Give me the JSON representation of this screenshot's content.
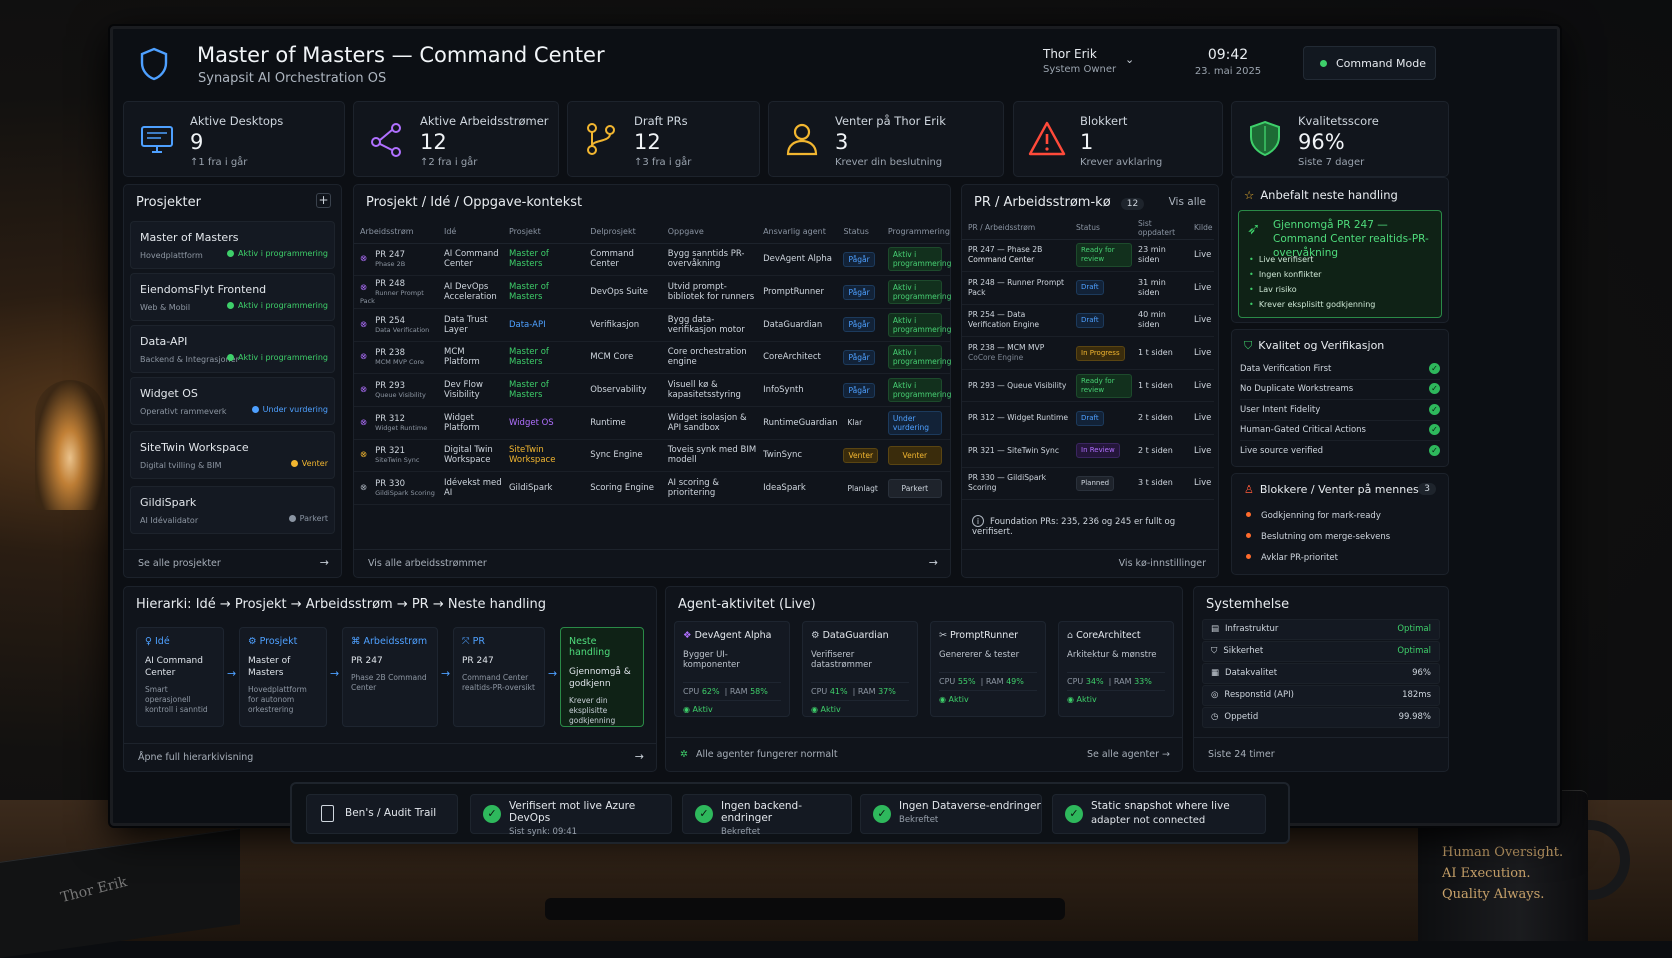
{
  "header": {
    "title": "Master of Masters — Command Center",
    "subtitle": "Synapsit AI Orchestration OS",
    "user": "Thor Erik",
    "role": "System Owner",
    "time": "09:42",
    "date": "23. mai 2025",
    "mode": "Command Mode"
  },
  "kpis": [
    {
      "label": "Aktive Desktops",
      "value": "9",
      "sub": "↑1 fra i går",
      "icon": "monitor-icon"
    },
    {
      "label": "Aktive Arbeidsstrømer",
      "value": "12",
      "sub": "↑2 fra i går",
      "icon": "workflow-icon"
    },
    {
      "label": "Draft PRs",
      "value": "12",
      "sub": "↑3 fra i går",
      "icon": "git-branch-icon"
    },
    {
      "label": "Venter på Thor Erik",
      "value": "3",
      "sub": "Krever din beslutning",
      "icon": "user-icon"
    },
    {
      "label": "Blokkert",
      "value": "1",
      "sub": "Krever avklaring",
      "icon": "warning-icon"
    },
    {
      "label": "Kvalitetsscore",
      "value": "96%",
      "sub": "Siste 7 dager",
      "icon": "shield-check-icon"
    }
  ],
  "projects": {
    "title": "Prosjekter",
    "footer": "Se alle prosjekter",
    "items": [
      {
        "name": "Master of Masters",
        "sub": "Hovedplattform",
        "status": "Aktiv i programmering",
        "color": "#3ecf6a"
      },
      {
        "name": "EiendomsFlyt Frontend",
        "sub": "Web & Mobil",
        "status": "Aktiv i programmering",
        "color": "#3ecf6a"
      },
      {
        "name": "Data-API",
        "sub": "Backend & Integrasjoner",
        "status": "Aktiv i programmering",
        "color": "#3ecf6a"
      },
      {
        "name": "Widget OS",
        "sub": "Operativt rammeverk",
        "status": "Under vurdering",
        "color": "#4ea0ff"
      },
      {
        "name": "SiteTwin Workspace",
        "sub": "Digital tvilling & BIM",
        "status": "Venter",
        "color": "#f2b630"
      },
      {
        "name": "GildiSpark",
        "sub": "AI Idévalidator",
        "status": "Parkert",
        "color": "#8a94a2"
      }
    ]
  },
  "workstreams": {
    "title": "Prosjekt / Idé / Oppgave-kontekst",
    "footer": "Vis alle arbeidsstrømmer",
    "columns": [
      "Arbeidsstrøm",
      "Idé",
      "Prosjekt",
      "Delprosjekt",
      "Oppgave",
      "Ansvarlig agent",
      "Status",
      "Programmering"
    ],
    "rows": [
      {
        "pr": "PR 247",
        "prsub": "Phase 2B",
        "idea": "AI Command Center",
        "project": "Master of Masters",
        "pc": "g",
        "sub": "Command Center",
        "task": "Bygg sanntids PR-overvåkning",
        "agent": "DevAgent Alpha",
        "status": "Pågår",
        "sc": "b",
        "prog": "Aktiv i programmering",
        "pg": "g"
      },
      {
        "pr": "PR 248",
        "prsub": "Runner Prompt Pack",
        "idea": "AI DevOps Acceleration",
        "project": "Master of Masters",
        "pc": "g",
        "sub": "DevOps Suite",
        "task": "Utvid prompt-bibliotek for runners",
        "agent": "PromptRunner",
        "status": "Pågår",
        "sc": "b",
        "prog": "Aktiv i programmering",
        "pg": "g"
      },
      {
        "pr": "PR 254",
        "prsub": "Data Verification",
        "idea": "Data Trust Layer",
        "project": "Data-API",
        "pc": "b",
        "sub": "Verifikasjon",
        "task": "Bygg data-verifikasjon motor",
        "agent": "DataGuardian",
        "status": "Pågår",
        "sc": "b",
        "prog": "Aktiv i programmering",
        "pg": "g"
      },
      {
        "pr": "PR 238",
        "prsub": "MCM MVP Core",
        "idea": "MCM Platform",
        "project": "Master of Masters",
        "pc": "g",
        "sub": "MCM Core",
        "task": "Core orchestration engine",
        "agent": "CoreArchitect",
        "status": "Pågår",
        "sc": "b",
        "prog": "Aktiv i programmering",
        "pg": "g"
      },
      {
        "pr": "PR 293",
        "prsub": "Queue Visibility",
        "idea": "Dev Flow Visibility",
        "project": "Master of Masters",
        "pc": "g",
        "sub": "Observability",
        "task": "Visuell kø & kapasitetsstyring",
        "agent": "InfoSynth",
        "status": "Pågår",
        "sc": "b",
        "prog": "Aktiv i programmering",
        "pg": "g"
      },
      {
        "pr": "PR 312",
        "prsub": "Widget Runtime",
        "idea": "Widget Platform",
        "project": "Widget OS",
        "pc": "p",
        "sub": "Runtime",
        "task": "Widget isolasjon & API sandbox",
        "agent": "RuntimeGuardian",
        "status": "Klar",
        "sc": "n",
        "prog": "Under vurdering",
        "pg": "b"
      },
      {
        "pr": "PR 321",
        "prsub": "SiteTwin Sync",
        "idea": "Digital Twin Workspace",
        "project": "SiteTwin Workspace",
        "pc": "y",
        "sub": "Sync Engine",
        "task": "Toveis synk med BIM modell",
        "agent": "TwinSync",
        "status": "Venter",
        "sc": "y",
        "prog": "Venter",
        "pg": "y"
      },
      {
        "pr": "PR 330",
        "prsub": "GildiSpark Scoring",
        "idea": "Idévekst med AI",
        "project": "GildiSpark",
        "pc": "n",
        "sub": "Scoring Engine",
        "task": "AI scoring & prioritering",
        "agent": "IdeaSpark",
        "status": "Planlagt",
        "sc": "t",
        "prog": "Parkert",
        "pg": "n"
      }
    ]
  },
  "queue": {
    "title": "PR / Arbeidsstrøm-kø",
    "count": "12",
    "viewall": "Vis alle",
    "footer": "Vis kø-innstillinger",
    "note": "Foundation PRs: 235, 236 og 245 er fullt og verifisert.",
    "columns": [
      "PR / Arbeidsstrøm",
      "Status",
      "Sist oppdatert",
      "Kilde"
    ],
    "rows": [
      {
        "name": "PR 247 — Phase 2B",
        "sub": "Command Center",
        "status": "Ready for review",
        "sc": "g",
        "time": "23 min siden",
        "src": "Live"
      },
      {
        "name": "PR 248 — Runner Prompt Pack",
        "sub": "",
        "status": "Draft",
        "sc": "b",
        "time": "31 min siden",
        "src": "Live"
      },
      {
        "name": "PR 254 — Data Verification Engine",
        "sub": "",
        "status": "Draft",
        "sc": "b",
        "time": "40 min siden",
        "src": "Live"
      },
      {
        "name": "PR 238 — MCM MVP",
        "sub": "CoCore Engine",
        "status": "In Progress",
        "sc": "y",
        "time": "1 t siden",
        "src": "Live"
      },
      {
        "name": "PR 293 — Queue Visibility",
        "sub": "",
        "status": "Ready for review",
        "sc": "g",
        "time": "1 t siden",
        "src": "Live"
      },
      {
        "name": "PR 312 — Widget Runtime",
        "sub": "",
        "status": "Draft",
        "sc": "b",
        "time": "2 t siden",
        "src": "Live"
      },
      {
        "name": "PR 321 — SiteTwin Sync",
        "sub": "",
        "status": "In Review",
        "sc": "p",
        "time": "2 t siden",
        "src": "Live"
      },
      {
        "name": "PR 330 — GildiSpark Scoring",
        "sub": "",
        "status": "Planned",
        "sc": "n",
        "time": "3 t siden",
        "src": "Live"
      }
    ]
  },
  "recommended": {
    "title": "Anbefalt neste handling",
    "action": "Gjennomgå PR 247 — Command Center realtids-PR-overvåkning",
    "points": [
      "Live verifisert",
      "Ingen konflikter",
      "Lav risiko",
      "Krever eksplisitt godkjenning"
    ]
  },
  "quality": {
    "title": "Kvalitet og Verifikasjon",
    "items": [
      "Data Verification First",
      "No Duplicate Workstreams",
      "User Intent Fidelity",
      "Human-Gated Critical Actions",
      "Live source verified"
    ]
  },
  "blockers": {
    "title": "Blokkere / Venter på menneske",
    "count": "3",
    "items": [
      "Godkjenning for mark-ready",
      "Beslutning om merge-sekvens",
      "Avklar PR-prioritet"
    ]
  },
  "hierarchy": {
    "title": "Hierarki: Idé → Prosjekt → Arbeidsstrøm → PR → Neste handling",
    "footer": "Åpne full hierarkivisning",
    "boxes": [
      {
        "head": "Idé",
        "text": "AI Command Center",
        "desc": "Smart operasjonell kontroll i sanntid",
        "icon": "bulb-icon"
      },
      {
        "head": "Prosjekt",
        "text": "Master of Masters",
        "desc": "Hovedplattform for autonom orkestrering",
        "icon": "gear-icon"
      },
      {
        "head": "Arbeidsstrøm",
        "text": "PR 247",
        "desc": "Phase 2B Command Center",
        "icon": "workflow-icon"
      },
      {
        "head": "PR",
        "text": "PR 247",
        "desc": "Command Center realtids-PR-oversikt",
        "icon": "git-merge-icon"
      },
      {
        "head": "Neste handling",
        "text": "Gjennomgå & godkjenn",
        "desc": "Krever din eksplisitte godkjenning",
        "icon": ""
      }
    ]
  },
  "agents": {
    "title": "Agent-aktivitet (Live)",
    "footer": "Alle agenter fungerer normalt",
    "viewall": "Se alle agenter",
    "items": [
      {
        "name": "DevAgent Alpha",
        "role": "Bygger UI-komponenter",
        "cpu": "62%",
        "ram": "58%",
        "state": "Aktiv"
      },
      {
        "name": "DataGuardian",
        "role": "Verifiserer datastrømmer",
        "cpu": "41%",
        "ram": "37%",
        "state": "Aktiv"
      },
      {
        "name": "PromptRunner",
        "role": "Genererer & tester",
        "cpu": "55%",
        "ram": "49%",
        "state": "Aktiv"
      },
      {
        "name": "CoreArchitect",
        "role": "Arkitektur & mønstre",
        "cpu": "34%",
        "ram": "33%",
        "state": "Aktiv"
      }
    ]
  },
  "health": {
    "title": "Systemhelse",
    "footer": "Siste 24 timer",
    "items": [
      {
        "label": "Infrastruktur",
        "value": "Optimal",
        "green": true
      },
      {
        "label": "Sikkerhet",
        "value": "Optimal",
        "green": true
      },
      {
        "label": "Datakvalitet",
        "value": "96%",
        "green": false
      },
      {
        "label": "Responstid (API)",
        "value": "182ms",
        "green": false
      },
      {
        "label": "Oppetid",
        "value": "99.98%",
        "green": false
      }
    ]
  },
  "taskbar": {
    "audit": "Ben's / Audit Trail",
    "items": [
      {
        "title": "Verifisert mot live Azure DevOps",
        "sub": "Sist synk: 09:41"
      },
      {
        "title": "Ingen backend-endringer",
        "sub": "Bekreftet"
      },
      {
        "title": "Ingen Dataverse-endringer",
        "sub": "Bekreftet"
      },
      {
        "title": "Static snapshot where live",
        "sub": "adapter not connected"
      }
    ]
  },
  "scene": {
    "notebook": "Thor Erik",
    "mug": [
      "Human Oversight.",
      "AI Execution.",
      "Quality Always."
    ]
  }
}
